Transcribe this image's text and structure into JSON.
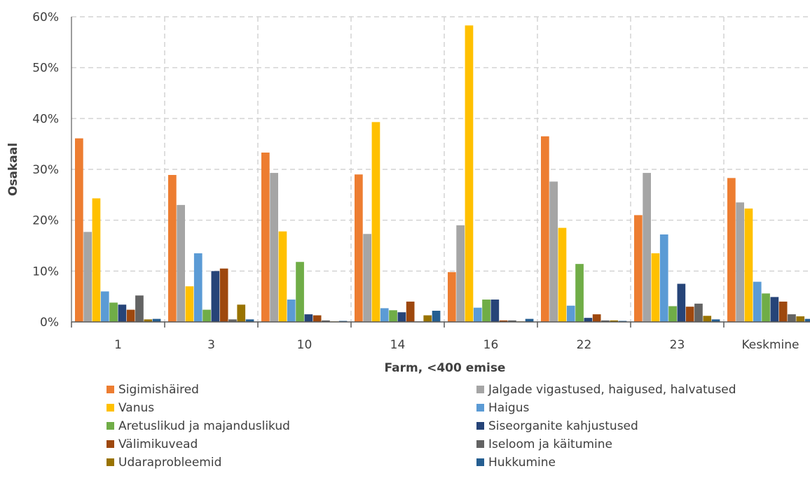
{
  "chart_data": {
    "type": "bar",
    "xlabel": "Farm, <400 emise",
    "ylabel": "Osakaal",
    "ylim": [
      0,
      0.6
    ],
    "yticks": [
      "0%",
      "10%",
      "20%",
      "30%",
      "40%",
      "50%",
      "60%"
    ],
    "grid": true,
    "legend_position": "bottom",
    "categories": [
      "1",
      "3",
      "10",
      "14",
      "16",
      "22",
      "23",
      "Keskmine"
    ],
    "series": [
      {
        "name": "Sigimishäired",
        "color": "#ED7D31",
        "values": [
          0.361,
          0.289,
          0.333,
          0.29,
          0.098,
          0.365,
          0.21,
          0.283
        ]
      },
      {
        "name": "Jalgade vigastused, haigused, halvatused",
        "color": "#A5A5A5",
        "values": [
          0.177,
          0.23,
          0.293,
          0.173,
          0.19,
          0.276,
          0.293,
          0.235
        ]
      },
      {
        "name": "Vanus",
        "color": "#FFC000",
        "values": [
          0.243,
          0.07,
          0.178,
          0.393,
          0.583,
          0.185,
          0.135,
          0.223
        ]
      },
      {
        "name": "Haigus",
        "color": "#5B9BD5",
        "values": [
          0.06,
          0.135,
          0.044,
          0.027,
          0.028,
          0.032,
          0.172,
          0.079
        ]
      },
      {
        "name": "Aretuslikud ja majanduslikud",
        "color": "#70AD47",
        "values": [
          0.038,
          0.024,
          0.118,
          0.023,
          0.044,
          0.114,
          0.031,
          0.056
        ]
      },
      {
        "name": "Siseorganite kahjustused",
        "color": "#264478",
        "values": [
          0.034,
          0.1,
          0.015,
          0.019,
          0.044,
          0.008,
          0.075,
          0.049
        ]
      },
      {
        "name": "Välimikuvead",
        "color": "#9E480E",
        "values": [
          0.024,
          0.105,
          0.013,
          0.04,
          0.003,
          0.015,
          0.03,
          0.04
        ]
      },
      {
        "name": "Iseloom ja käitumine",
        "color": "#636363",
        "values": [
          0.052,
          0.005,
          0.003,
          0.001,
          0.003,
          0.003,
          0.036,
          0.015
        ]
      },
      {
        "name": "Udaraprobleemid",
        "color": "#997300",
        "values": [
          0.005,
          0.034,
          0.001,
          0.013,
          0.001,
          0.003,
          0.012,
          0.011
        ]
      },
      {
        "name": "Hukkumine",
        "color": "#255E91",
        "values": [
          0.006,
          0.005,
          0.002,
          0.022,
          0.006,
          0.002,
          0.005,
          0.006
        ]
      }
    ]
  }
}
